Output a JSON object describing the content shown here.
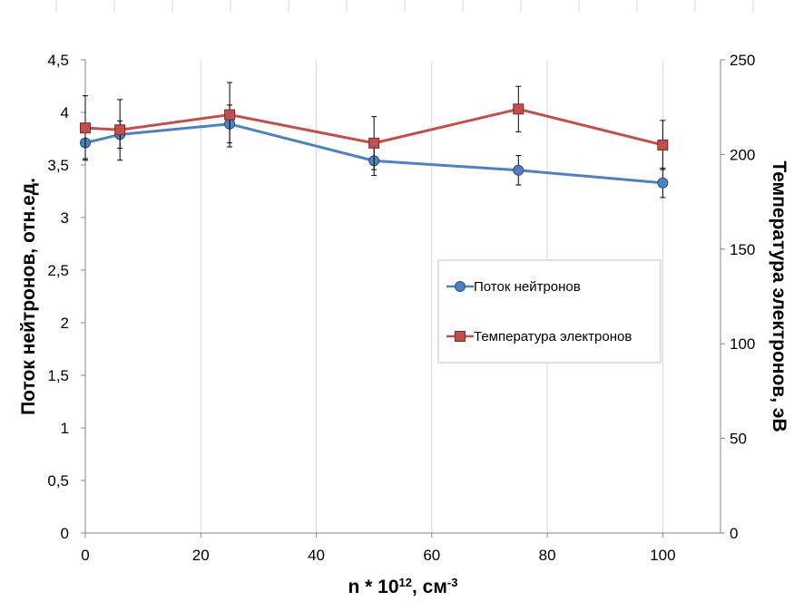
{
  "chart_data": {
    "type": "line",
    "title": "",
    "x_ticks": [
      "0",
      "20",
      "40",
      "60",
      "80",
      "100"
    ],
    "x_range": [
      0,
      110
    ],
    "y_left": {
      "label": "Поток нейтронов, отн.ед.",
      "range": [
        0,
        4.5
      ],
      "ticks": [
        0,
        0.5,
        1,
        1.5,
        2,
        2.5,
        3,
        3.5,
        4,
        4.5
      ],
      "tick_labels": [
        "0",
        "0,5",
        "1",
        "1,5",
        "2",
        "2,5",
        "3",
        "3,5",
        "4",
        "4,5"
      ]
    },
    "y_right": {
      "label": "Температура электронов, эВ",
      "range": [
        0,
        250
      ],
      "ticks": [
        0,
        50,
        100,
        150,
        200,
        250
      ],
      "tick_labels": [
        "0",
        "50",
        "100",
        "150",
        "200",
        "250"
      ]
    },
    "xlabel": {
      "base": "n * 10",
      "exp": "12",
      "unit": ", см",
      "unit_exp": "-3"
    },
    "series": [
      {
        "name": "Поток нейтронов",
        "axis": "left",
        "color": "#4F81BD",
        "marker": "circle",
        "x": [
          0,
          6,
          25,
          50,
          75,
          100
        ],
        "y": [
          3.71,
          3.79,
          3.89,
          3.54,
          3.45,
          3.33
        ],
        "err": [
          0.15,
          0.13,
          0.18,
          0.14,
          0.14,
          0.14
        ]
      },
      {
        "name": "Температура электронов",
        "axis": "right",
        "color": "#C0504D",
        "marker": "square",
        "x": [
          0,
          6,
          25,
          50,
          75,
          100
        ],
        "y": [
          214,
          213,
          221,
          206,
          224,
          205
        ],
        "err": [
          17,
          16,
          17,
          14,
          12,
          13
        ]
      }
    ],
    "legend": "center-right",
    "gridlines": "vertical"
  }
}
